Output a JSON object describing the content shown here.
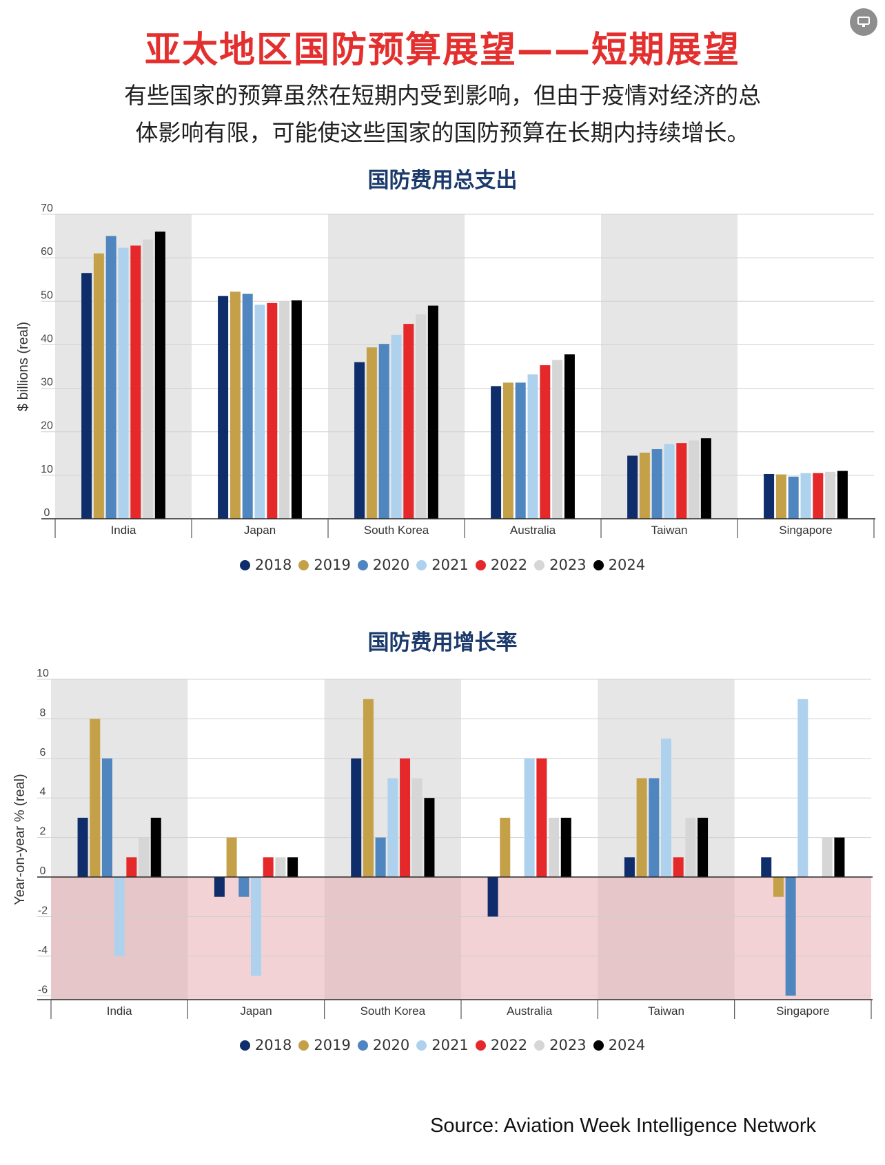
{
  "header": {
    "title": "亚太地区国防预算展望——短期展望",
    "subtitle_line1": "有些国家的预算虽然在短期内受到影响，但由于疫情对经济的总",
    "subtitle_line2": "体影响有限，可能使这些国家的国防预算在长期内持续增长。"
  },
  "footer": {
    "source": "Source: Aviation Week Intelligence Network"
  },
  "controls": {
    "present_icon": "presentation-screen-icon"
  },
  "series_colors": {
    "2018": "#0f2c6b",
    "2019": "#c4a148",
    "2020": "#4f86c0",
    "2021": "#aed2ee",
    "2022": "#e5292b",
    "2023": "#d6d6d6",
    "2024": "#000000"
  },
  "chart_data": [
    {
      "type": "bar",
      "title": "国防费用总支出",
      "ylabel": "$ billions (real)",
      "xlabel": "",
      "categories": [
        "India",
        "Japan",
        "South Korea",
        "Australia",
        "Taiwan",
        "Singapore"
      ],
      "ylim": [
        0,
        70
      ],
      "yticks": [
        0,
        10,
        20,
        30,
        40,
        50,
        60,
        70
      ],
      "grid": true,
      "legend": "bottom",
      "series": [
        {
          "name": "2018",
          "values": [
            56.5,
            51.2,
            36.0,
            30.5,
            14.5,
            10.3
          ]
        },
        {
          "name": "2019",
          "values": [
            61.0,
            52.2,
            39.4,
            31.3,
            15.2,
            10.2
          ]
        },
        {
          "name": "2020",
          "values": [
            65.0,
            51.7,
            40.2,
            31.3,
            16.0,
            9.7
          ]
        },
        {
          "name": "2021",
          "values": [
            62.3,
            49.2,
            42.3,
            33.2,
            17.2,
            10.5
          ]
        },
        {
          "name": "2022",
          "values": [
            62.8,
            49.6,
            44.8,
            35.3,
            17.4,
            10.5
          ]
        },
        {
          "name": "2023",
          "values": [
            64.2,
            50.0,
            47.0,
            36.5,
            18.0,
            10.8
          ]
        },
        {
          "name": "2024",
          "values": [
            66.0,
            50.2,
            49.0,
            37.8,
            18.5,
            11.0
          ]
        }
      ]
    },
    {
      "type": "bar",
      "title": "国防费用增长率",
      "ylabel": "Year-on-year % (real)",
      "xlabel": "",
      "categories": [
        "India",
        "Japan",
        "South Korea",
        "Australia",
        "Taiwan",
        "Singapore"
      ],
      "ylim": [
        -6.2,
        10
      ],
      "yticks": [
        -6,
        -4,
        -2,
        0,
        2,
        4,
        6,
        8,
        10
      ],
      "grid": true,
      "legend": "bottom",
      "series": [
        {
          "name": "2018",
          "values": [
            3,
            -1,
            6,
            -2,
            1,
            1
          ]
        },
        {
          "name": "2019",
          "values": [
            8,
            2,
            9,
            3,
            5,
            -1
          ]
        },
        {
          "name": "2020",
          "values": [
            6,
            -1,
            2,
            0,
            5,
            -6
          ]
        },
        {
          "name": "2021",
          "values": [
            -4,
            -5,
            5,
            6,
            7,
            9
          ]
        },
        {
          "name": "2022",
          "values": [
            1,
            1,
            6,
            6,
            1,
            0
          ]
        },
        {
          "name": "2023",
          "values": [
            2,
            1,
            5,
            3,
            3,
            2
          ]
        },
        {
          "name": "2024",
          "values": [
            3,
            1,
            4,
            3,
            3,
            2
          ]
        }
      ]
    }
  ]
}
